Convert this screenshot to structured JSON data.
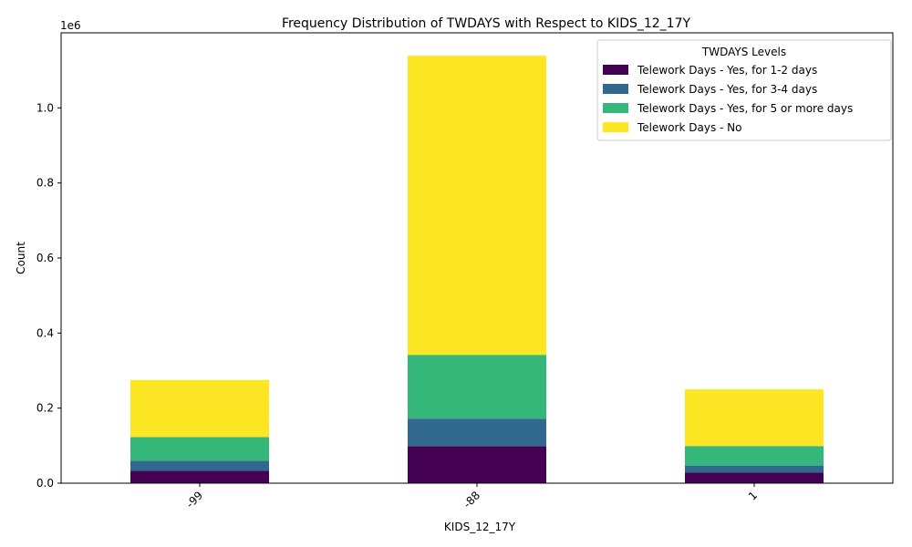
{
  "chart_data": {
    "type": "bar",
    "stacked": true,
    "title": "Frequency Distribution of TWDAYS with Respect to KIDS_12_17Y",
    "xlabel": "KIDS_12_17Y",
    "ylabel": "Count",
    "y_multiplier_label": "1e6",
    "ylim": [
      0,
      1.2
    ],
    "yticks": [
      "0.0",
      "0.2",
      "0.4",
      "0.6",
      "0.8",
      "1.0"
    ],
    "yticks_values": [
      0,
      0.2,
      0.4,
      0.6,
      0.8,
      1.0
    ],
    "categories": [
      "-99",
      "-88",
      "1"
    ],
    "legend_title": "TWDAYS Levels",
    "legend_position": "top-right",
    "grid": false,
    "series": [
      {
        "name": "Telework Days - Yes, for 1-2 days",
        "color": "#440154",
        "values": [
          0.033,
          0.099,
          0.028
        ]
      },
      {
        "name": "Telework Days - Yes, for 3-4 days",
        "color": "#31688e",
        "values": [
          0.027,
          0.073,
          0.019
        ]
      },
      {
        "name": "Telework Days - Yes, for 5 or more days",
        "color": "#35b779",
        "values": [
          0.063,
          0.17,
          0.052
        ]
      },
      {
        "name": "Telework Days - No",
        "color": "#fde725",
        "values": [
          0.152,
          0.797,
          0.151
        ]
      }
    ]
  }
}
